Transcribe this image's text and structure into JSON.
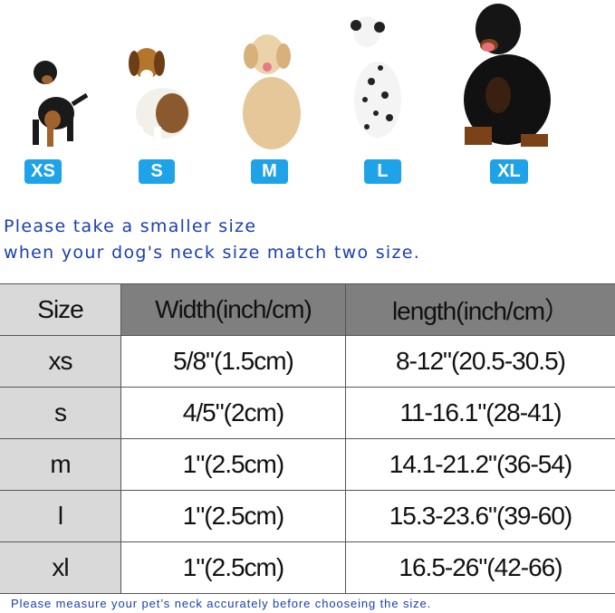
{
  "sizes": [
    "XS",
    "S",
    "M",
    "L",
    "XL"
  ],
  "badge_color": "#1fa3e8",
  "note": {
    "line1": "Please take a smaller size",
    "line2": "when your dog's neck size match two size."
  },
  "table": {
    "headers": [
      "Size",
      "Width(inch/cm)",
      "length(inch/cm）"
    ],
    "rows": [
      [
        "xs",
        "5/8\"(1.5cm)",
        "8-12\"(20.5-30.5)"
      ],
      [
        "s",
        "4/5\"(2cm)",
        "11-16.1\"(28-41)"
      ],
      [
        "m",
        "1\"(2.5cm)",
        "14.1-21.2\"(36-54)"
      ],
      [
        "l",
        "1\"(2.5cm)",
        "15.3-23.6\"(39-60)"
      ],
      [
        "xl",
        "1\"(2.5cm)",
        "16.5-26\"(42-66)"
      ]
    ]
  },
  "footer": "Please measure your pet’s neck accurately before chooseing the size."
}
